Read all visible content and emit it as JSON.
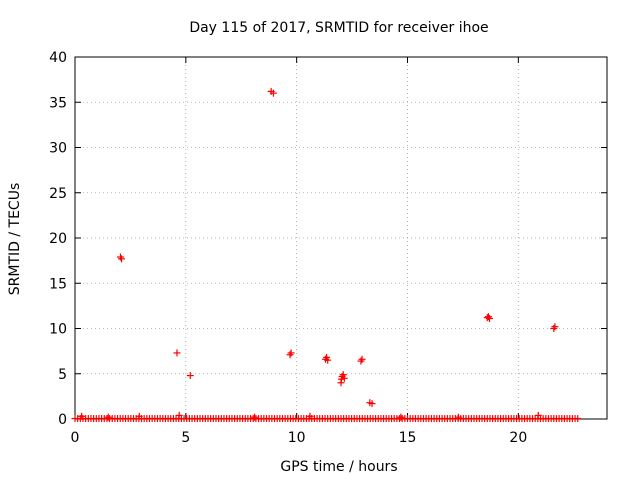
{
  "chart_data": {
    "type": "scatter",
    "title": "Day 115 of 2017, SRMTID for receiver ihoe",
    "xlabel": "GPS time / hours",
    "ylabel": "SRMTID / TECUs",
    "xlim": [
      0,
      24
    ],
    "ylim": [
      0,
      40
    ],
    "xticks": [
      0,
      5,
      10,
      15,
      20
    ],
    "yticks": [
      0,
      5,
      10,
      15,
      20,
      25,
      30,
      35,
      40
    ],
    "grid": true,
    "marker": "+",
    "color": "#ff0000",
    "baseline": {
      "x_start": 0.0,
      "x_end": 22.7,
      "y": 0.05,
      "step": 0.12
    },
    "series": [
      {
        "name": "SRMTID",
        "points": [
          [
            2.05,
            17.9
          ],
          [
            2.1,
            17.7
          ],
          [
            4.6,
            7.3
          ],
          [
            5.2,
            4.8
          ],
          [
            8.85,
            36.2
          ],
          [
            8.95,
            36.0
          ],
          [
            9.7,
            7.1
          ],
          [
            9.75,
            7.3
          ],
          [
            11.3,
            6.6
          ],
          [
            11.35,
            6.8
          ],
          [
            11.4,
            6.5
          ],
          [
            12.0,
            4.0
          ],
          [
            12.02,
            4.4
          ],
          [
            12.05,
            4.7
          ],
          [
            12.1,
            4.9
          ],
          [
            12.15,
            4.5
          ],
          [
            12.9,
            6.4
          ],
          [
            12.95,
            6.6
          ],
          [
            13.3,
            1.8
          ],
          [
            13.4,
            1.7
          ],
          [
            18.6,
            11.2
          ],
          [
            18.65,
            11.3
          ],
          [
            18.7,
            11.1
          ],
          [
            21.6,
            10.0
          ],
          [
            21.65,
            10.2
          ],
          [
            0.3,
            0.3
          ],
          [
            1.5,
            0.2
          ],
          [
            2.9,
            0.3
          ],
          [
            4.7,
            0.4
          ],
          [
            8.1,
            0.2
          ],
          [
            10.6,
            0.3
          ],
          [
            14.7,
            0.2
          ],
          [
            17.3,
            0.2
          ],
          [
            20.9,
            0.4
          ]
        ]
      }
    ]
  }
}
